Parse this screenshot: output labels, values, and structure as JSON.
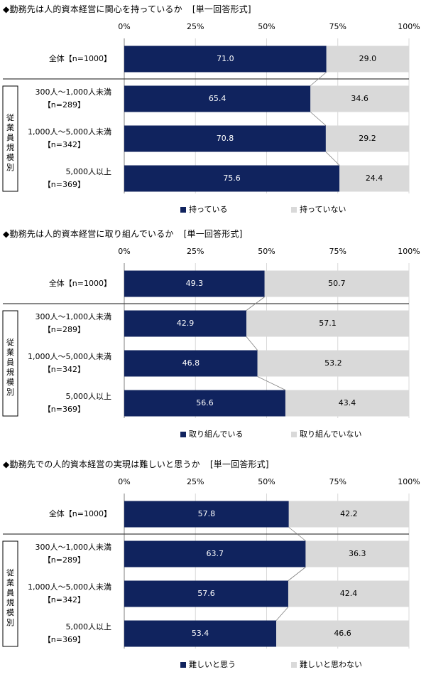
{
  "chart_data": [
    {
      "type": "bar",
      "stacked": true,
      "orientation": "horizontal",
      "title": "◆勤務先は人的資本経営に関心を持っているか",
      "format_label": "[単一回答形式]",
      "xlim": [
        0,
        100
      ],
      "ticks": [
        "0%",
        "25%",
        "50%",
        "75%",
        "100%"
      ],
      "group_label": "従業員規模別",
      "categories": [
        {
          "name": "全体",
          "n": "【n=1000】"
        },
        {
          "name": "300人～1,000人未満",
          "n": "【n=289】"
        },
        {
          "name": "1,000人～5,000人未満",
          "n": "【n=342】"
        },
        {
          "name": "5,000人以上",
          "n": "【n=369】"
        }
      ],
      "series": [
        {
          "name": "持っている",
          "color": "#10235e",
          "values": [
            71.0,
            65.4,
            70.8,
            75.6
          ],
          "labels": [
            "71.0",
            "65.4",
            "70.8",
            "75.6"
          ]
        },
        {
          "name": "持っていない",
          "color": "#d9d9d9",
          "values": [
            29.0,
            34.6,
            29.2,
            24.4
          ],
          "labels": [
            "29.0",
            "34.6",
            "29.2",
            "24.4"
          ]
        }
      ],
      "legend": "bottom"
    },
    {
      "type": "bar",
      "stacked": true,
      "orientation": "horizontal",
      "title": "◆勤務先は人的資本経営に取り組んでいるか",
      "format_label": "[単一回答形式]",
      "xlim": [
        0,
        100
      ],
      "ticks": [
        "0%",
        "25%",
        "50%",
        "75%",
        "100%"
      ],
      "group_label": "従業員規模別",
      "categories": [
        {
          "name": "全体",
          "n": "【n=1000】"
        },
        {
          "name": "300人～1,000人未満",
          "n": "【n=289】"
        },
        {
          "name": "1,000人～5,000人未満",
          "n": "【n=342】"
        },
        {
          "name": "5,000人以上",
          "n": "【n=369】"
        }
      ],
      "series": [
        {
          "name": "取り組んでいる",
          "color": "#10235e",
          "values": [
            49.3,
            42.9,
            46.8,
            56.6
          ],
          "labels": [
            "49.3",
            "42.9",
            "46.8",
            "56.6"
          ]
        },
        {
          "name": "取り組んでいない",
          "color": "#d9d9d9",
          "values": [
            50.7,
            57.1,
            53.2,
            43.4
          ],
          "labels": [
            "50.7",
            "57.1",
            "53.2",
            "43.4"
          ]
        }
      ],
      "legend": "bottom"
    },
    {
      "type": "bar",
      "stacked": true,
      "orientation": "horizontal",
      "title": "◆勤務先での人的資本経営の実現は難しいと思うか",
      "format_label": "[単一回答形式]",
      "xlim": [
        0,
        100
      ],
      "ticks": [
        "0%",
        "25%",
        "50%",
        "75%",
        "100%"
      ],
      "group_label": "従業員規模別",
      "categories": [
        {
          "name": "全体",
          "n": "【n=1000】"
        },
        {
          "name": "300人～1,000人未満",
          "n": "【n=289】"
        },
        {
          "name": "1,000人～5,000人未満",
          "n": "【n=342】"
        },
        {
          "name": "5,000人以上",
          "n": "【n=369】"
        }
      ],
      "series": [
        {
          "name": "難しいと思う",
          "color": "#10235e",
          "values": [
            57.8,
            63.7,
            57.6,
            53.4
          ],
          "labels": [
            "57.8",
            "63.7",
            "57.6",
            "53.4"
          ]
        },
        {
          "name": "難しいと思わない",
          "color": "#d9d9d9",
          "values": [
            42.2,
            36.3,
            42.4,
            46.6
          ],
          "labels": [
            "42.2",
            "36.3",
            "42.4",
            "46.6"
          ]
        }
      ],
      "legend": "bottom"
    }
  ]
}
